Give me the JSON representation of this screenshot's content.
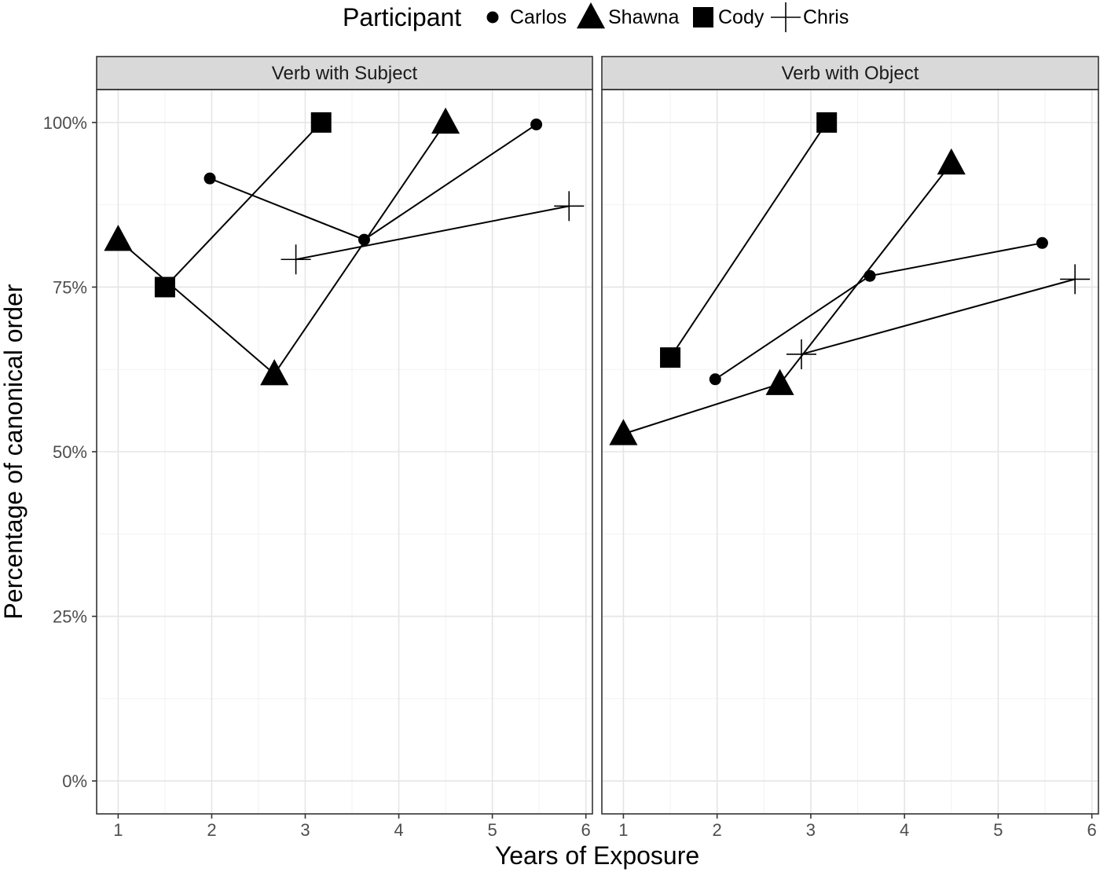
{
  "chart_data": {
    "type": "line",
    "xlabel": "Years of Exposure",
    "ylabel": "Percentage of canonical order",
    "xlim": [
      0.77,
      6.07
    ],
    "ylim": [
      -5,
      105
    ],
    "x_ticks": [
      1,
      2,
      3,
      4,
      5,
      6
    ],
    "y_ticks": [
      0,
      25,
      50,
      75,
      100
    ],
    "y_tick_labels": [
      "0%",
      "25%",
      "50%",
      "75%",
      "100%"
    ],
    "grid": true,
    "legend": {
      "title": "Participant",
      "position": "top",
      "entries": [
        {
          "name": "Carlos",
          "shape": "circle"
        },
        {
          "name": "Shawna",
          "shape": "triangle"
        },
        {
          "name": "Cody",
          "shape": "square"
        },
        {
          "name": "Chris",
          "shape": "cross"
        }
      ]
    },
    "facets": [
      {
        "title": "Verb with Subject",
        "series": [
          {
            "name": "Carlos",
            "shape": "circle",
            "x": [
              1.98,
              3.63,
              5.47
            ],
            "y": [
              91.5,
              82.2,
              99.7
            ]
          },
          {
            "name": "Shawna",
            "shape": "triangle",
            "x": [
              1.0,
              2.67,
              4.5
            ],
            "y": [
              82.2,
              61.8,
              100.0
            ]
          },
          {
            "name": "Cody",
            "shape": "square",
            "x": [
              1.5,
              3.17
            ],
            "y": [
              75.0,
              100.0
            ]
          },
          {
            "name": "Chris",
            "shape": "cross",
            "x": [
              2.9,
              5.82
            ],
            "y": [
              79.2,
              87.3
            ]
          }
        ]
      },
      {
        "title": "Verb with Object",
        "series": [
          {
            "name": "Carlos",
            "shape": "circle",
            "x": [
              1.98,
              3.63,
              5.47
            ],
            "y": [
              61.0,
              76.7,
              81.7
            ]
          },
          {
            "name": "Shawna",
            "shape": "triangle",
            "x": [
              1.0,
              2.67,
              4.5
            ],
            "y": [
              52.7,
              60.3,
              93.8
            ]
          },
          {
            "name": "Cody",
            "shape": "square",
            "x": [
              1.5,
              3.17
            ],
            "y": [
              64.3,
              100.0
            ]
          },
          {
            "name": "Chris",
            "shape": "cross",
            "x": [
              2.9,
              5.82
            ],
            "y": [
              64.8,
              76.2
            ]
          }
        ]
      }
    ]
  }
}
